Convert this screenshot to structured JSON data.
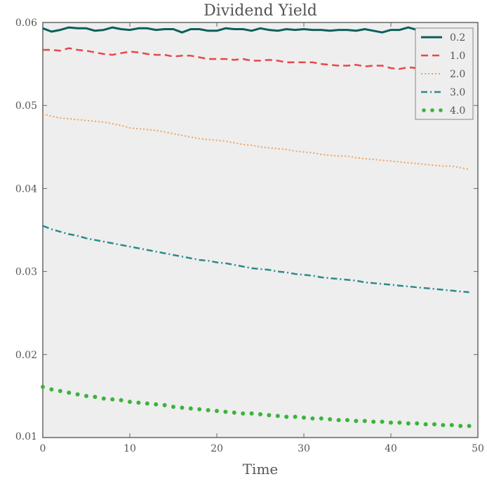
{
  "chart_data": {
    "type": "line",
    "title": "Dividend Yield",
    "xlabel": "Time",
    "ylabel": "",
    "xlim": [
      0,
      50
    ],
    "ylim": [
      0.01,
      0.06
    ],
    "xticks": [
      0,
      10,
      20,
      30,
      40,
      50
    ],
    "xtick_labels": [
      "0",
      "10",
      "20",
      "30",
      "40",
      "50"
    ],
    "yticks": [
      0.01,
      0.02,
      0.03,
      0.04,
      0.05,
      0.06
    ],
    "ytick_labels": [
      "0.01",
      "0.02",
      "0.03",
      "0.04",
      "0.05",
      "0.06"
    ],
    "grid": false,
    "legend_position": "top-right",
    "x": [
      0,
      1,
      2,
      3,
      4,
      5,
      6,
      7,
      8,
      9,
      10,
      11,
      12,
      13,
      14,
      15,
      16,
      17,
      18,
      19,
      20,
      21,
      22,
      23,
      24,
      25,
      26,
      27,
      28,
      29,
      30,
      31,
      32,
      33,
      34,
      35,
      36,
      37,
      38,
      39,
      40,
      41,
      42,
      43,
      44,
      45,
      46,
      47,
      48,
      49
    ],
    "series": [
      {
        "name": "0.2",
        "color": "#0d5e5b",
        "style": "solid",
        "values": [
          0.0593,
          0.0589,
          0.0591,
          0.0594,
          0.0593,
          0.0593,
          0.059,
          0.0591,
          0.0594,
          0.0592,
          0.0591,
          0.0593,
          0.0593,
          0.0591,
          0.0592,
          0.0592,
          0.0588,
          0.0592,
          0.0592,
          0.059,
          0.059,
          0.0593,
          0.0592,
          0.0592,
          0.059,
          0.0593,
          0.0591,
          0.059,
          0.0592,
          0.0591,
          0.0592,
          0.0591,
          0.0591,
          0.059,
          0.0591,
          0.0591,
          0.059,
          0.0592,
          0.059,
          0.0588,
          0.0591,
          0.0591,
          0.0594,
          0.0591,
          0.059,
          0.0592,
          0.059,
          0.059,
          0.0591,
          0.059
        ]
      },
      {
        "name": "1.0",
        "color": "#e8474b",
        "style": "dashed",
        "values": [
          0.0567,
          0.0567,
          0.0566,
          0.0569,
          0.0567,
          0.0566,
          0.0564,
          0.0562,
          0.0561,
          0.0563,
          0.0565,
          0.0564,
          0.0562,
          0.0561,
          0.0561,
          0.0559,
          0.056,
          0.056,
          0.0558,
          0.0556,
          0.0556,
          0.0556,
          0.0555,
          0.0556,
          0.0554,
          0.0554,
          0.0555,
          0.0554,
          0.0552,
          0.0552,
          0.0552,
          0.0552,
          0.055,
          0.0549,
          0.0548,
          0.0548,
          0.0549,
          0.0547,
          0.0548,
          0.0548,
          0.0545,
          0.0544,
          0.0546,
          0.0545,
          0.0544,
          0.0544,
          0.0543,
          0.0543,
          0.0542,
          0.0541
        ]
      },
      {
        "name": "2.0",
        "color": "#f0a15e",
        "style": "dotted",
        "values": [
          0.049,
          0.0487,
          0.0485,
          0.0484,
          0.0483,
          0.0482,
          0.0481,
          0.048,
          0.0478,
          0.0476,
          0.0473,
          0.0472,
          0.0471,
          0.047,
          0.0468,
          0.0466,
          0.0464,
          0.0462,
          0.046,
          0.0459,
          0.0458,
          0.0457,
          0.0455,
          0.0453,
          0.0452,
          0.045,
          0.0449,
          0.0448,
          0.0447,
          0.0445,
          0.0444,
          0.0443,
          0.0441,
          0.044,
          0.0439,
          0.0439,
          0.0437,
          0.0436,
          0.0435,
          0.0434,
          0.0433,
          0.0432,
          0.0431,
          0.043,
          0.0429,
          0.0428,
          0.0427,
          0.0427,
          0.0425,
          0.0423
        ]
      },
      {
        "name": "3.0",
        "color": "#2b8a8c",
        "style": "dashdot",
        "values": [
          0.0355,
          0.0351,
          0.0348,
          0.0345,
          0.0343,
          0.034,
          0.0338,
          0.0336,
          0.0334,
          0.0332,
          0.033,
          0.0328,
          0.0326,
          0.0324,
          0.0322,
          0.032,
          0.0318,
          0.0316,
          0.0314,
          0.0313,
          0.0311,
          0.031,
          0.0308,
          0.0306,
          0.0304,
          0.0303,
          0.0302,
          0.03,
          0.0299,
          0.0297,
          0.0296,
          0.0295,
          0.0293,
          0.0292,
          0.0291,
          0.029,
          0.0289,
          0.0287,
          0.0286,
          0.0285,
          0.0284,
          0.0283,
          0.0282,
          0.0281,
          0.028,
          0.0279,
          0.0278,
          0.0277,
          0.0276,
          0.0275
        ]
      },
      {
        "name": "4.0",
        "color": "#3cb33c",
        "style": "dots",
        "values": [
          0.0161,
          0.0158,
          0.0156,
          0.0154,
          0.0152,
          0.015,
          0.0149,
          0.0147,
          0.0146,
          0.0145,
          0.0143,
          0.0142,
          0.0141,
          0.014,
          0.0139,
          0.0137,
          0.0136,
          0.0135,
          0.0134,
          0.0133,
          0.0132,
          0.0131,
          0.013,
          0.0129,
          0.0129,
          0.0128,
          0.0127,
          0.0126,
          0.0125,
          0.0125,
          0.0124,
          0.0123,
          0.0123,
          0.0122,
          0.0121,
          0.0121,
          0.012,
          0.012,
          0.0119,
          0.0119,
          0.0118,
          0.0118,
          0.0117,
          0.0117,
          0.0116,
          0.0116,
          0.0115,
          0.0115,
          0.0114,
          0.0114
        ]
      }
    ]
  }
}
